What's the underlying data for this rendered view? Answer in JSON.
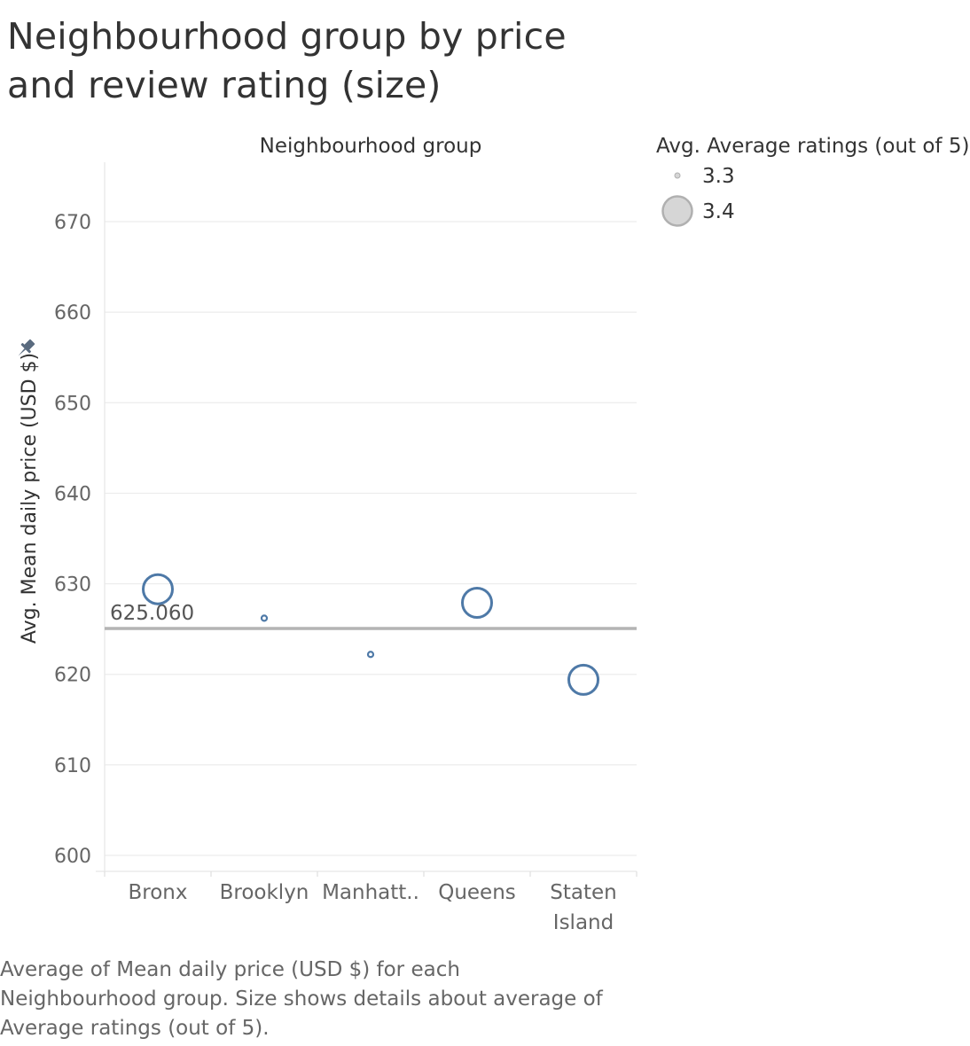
{
  "title": "Neighbourhood group by price and review rating (size)",
  "caption": "Average of Mean daily price (USD $) for each Neighbourhood group.  Size shows details about average of Average ratings (out of 5).",
  "chart_data": {
    "type": "scatter",
    "column_header": "Neighbourhood group",
    "ylabel": "Avg. Mean daily price (USD $)",
    "ylim": [
      598,
      675
    ],
    "y_ticks": [
      600,
      610,
      620,
      630,
      640,
      650,
      660,
      670
    ],
    "categories": [
      "Bronx",
      "Brooklyn",
      "Manhatt..",
      "Queens",
      "Staten Island"
    ],
    "category_labels": [
      [
        "Bronx"
      ],
      [
        "Brooklyn"
      ],
      [
        "Manhatt.."
      ],
      [
        "Queens"
      ],
      [
        "Staten",
        "Island"
      ]
    ],
    "values": [
      629.4,
      626.2,
      622.2,
      627.9,
      619.4
    ],
    "size_values": [
      3.4,
      3.3,
      3.3,
      3.4,
      3.4
    ],
    "reference_line": {
      "value": 625.06,
      "label": "625.060"
    },
    "legend": {
      "title": "Avg. Average ratings (out of 5)",
      "items": [
        {
          "label": "3.3",
          "value": 3.3
        },
        {
          "label": "3.4",
          "value": 3.4
        }
      ],
      "position": "top-right"
    },
    "grid": true,
    "mark_color": "#4e79a7"
  }
}
